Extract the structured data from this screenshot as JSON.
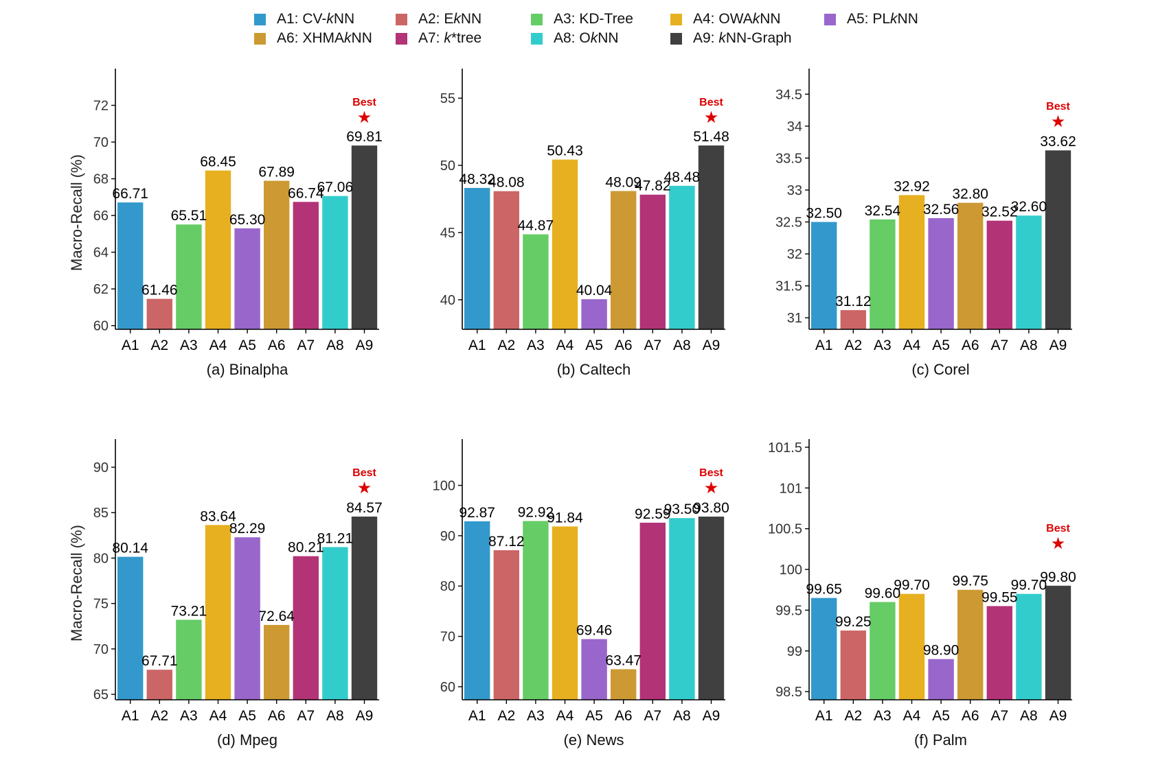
{
  "legend": [
    {
      "prefix": "A1: CV-",
      "ital": "k",
      "suffix": "NN",
      "color": "#3399CC"
    },
    {
      "prefix": "A2: E",
      "ital": "k",
      "suffix": "NN",
      "color": "#CC6666"
    },
    {
      "prefix": "A3: KD-Tree",
      "ital": "",
      "suffix": "",
      "color": "#66CC66"
    },
    {
      "prefix": "A4: OWA",
      "ital": "k",
      "suffix": "NN",
      "color": "#E6B020"
    },
    {
      "prefix": "A5: PL",
      "ital": "k",
      "suffix": "NN",
      "color": "#9966CC"
    },
    {
      "prefix": "A6: XHMA",
      "ital": "k",
      "suffix": "NN",
      "color": "#CC9933"
    },
    {
      "prefix": "A7: ",
      "ital": "k",
      "suffix": "*tree",
      "color": "#B33377"
    },
    {
      "prefix": "A8: O",
      "ital": "k",
      "suffix": "NN",
      "color": "#33CCCC"
    },
    {
      "prefix": "A9: ",
      "ital": "k",
      "suffix": "NN-Graph",
      "color": "#404040"
    }
  ],
  "best_label": "Best",
  "best_color": "#DD0000",
  "ylabel": "Macro-Recall (%)",
  "chart_data": [
    {
      "type": "bar",
      "title": "(a) Binalpha",
      "ylabel": "Macro-Recall (%)",
      "categories": [
        "A1",
        "A2",
        "A3",
        "A4",
        "A5",
        "A6",
        "A7",
        "A8",
        "A9"
      ],
      "values": [
        66.71,
        61.46,
        65.51,
        68.45,
        65.3,
        67.89,
        66.74,
        67.06,
        69.81
      ],
      "labels": [
        "66.71",
        "61.46",
        "65.51",
        "68.45",
        "65.30",
        "67.89",
        "66.74",
        "67.06",
        "69.81"
      ],
      "ylim": [
        59.8,
        74.0
      ],
      "yticks": [
        60,
        62,
        64,
        66,
        68,
        70,
        72
      ],
      "ytick_labels": [
        "60",
        "62",
        "64",
        "66",
        "68",
        "70",
        "72"
      ],
      "best_index": 8
    },
    {
      "type": "bar",
      "title": "(b) Caltech",
      "ylabel": "",
      "categories": [
        "A1",
        "A2",
        "A3",
        "A4",
        "A5",
        "A6",
        "A7",
        "A8",
        "A9"
      ],
      "values": [
        48.32,
        48.08,
        44.87,
        50.43,
        40.04,
        48.09,
        47.82,
        48.48,
        51.48
      ],
      "labels": [
        "48.32",
        "48.08",
        "44.87",
        "50.43",
        "40.04",
        "48.09",
        "47.82",
        "48.48",
        "51.48"
      ],
      "ylim": [
        37.8,
        57.2
      ],
      "yticks": [
        40,
        45,
        50,
        55
      ],
      "ytick_labels": [
        "40",
        "45",
        "50",
        "55"
      ],
      "best_index": 8
    },
    {
      "type": "bar",
      "title": "(c) Corel",
      "ylabel": "",
      "categories": [
        "A1",
        "A2",
        "A3",
        "A4",
        "A5",
        "A6",
        "A7",
        "A8",
        "A9"
      ],
      "values": [
        32.5,
        31.12,
        32.54,
        32.92,
        32.56,
        32.8,
        32.52,
        32.6,
        33.62
      ],
      "labels": [
        "32.50",
        "31.12",
        "32.54",
        "32.92",
        "32.56",
        "32.80",
        "32.52",
        "32.60",
        "33.62"
      ],
      "ylim": [
        30.82,
        34.9
      ],
      "yticks": [
        31,
        31.5,
        32,
        32.5,
        33,
        33.5,
        34,
        34.5
      ],
      "ytick_labels": [
        "31",
        "31.5",
        "32",
        "32.5",
        "33",
        "33.5",
        "34",
        "34.5"
      ],
      "best_index": 8
    },
    {
      "type": "bar",
      "title": "(d) Mpeg",
      "ylabel": "Macro-Recall (%)",
      "categories": [
        "A1",
        "A2",
        "A3",
        "A4",
        "A5",
        "A6",
        "A7",
        "A8",
        "A9"
      ],
      "values": [
        80.14,
        67.71,
        73.21,
        83.64,
        82.29,
        72.64,
        80.21,
        81.21,
        84.57
      ],
      "labels": [
        "80.14",
        "67.71",
        "73.21",
        "83.64",
        "82.29",
        "72.64",
        "80.21",
        "81.21",
        "84.57"
      ],
      "ylim": [
        64.4,
        93.1
      ],
      "yticks": [
        65,
        70,
        75,
        80,
        85,
        90
      ],
      "ytick_labels": [
        "65",
        "70",
        "75",
        "80",
        "85",
        "90"
      ],
      "best_index": 8
    },
    {
      "type": "bar",
      "title": "(e) News",
      "ylabel": "",
      "categories": [
        "A1",
        "A2",
        "A3",
        "A4",
        "A5",
        "A6",
        "A7",
        "A8",
        "A9"
      ],
      "values": [
        92.87,
        87.12,
        92.92,
        91.84,
        69.46,
        63.47,
        92.59,
        93.5,
        93.8
      ],
      "labels": [
        "92.87",
        "87.12",
        "92.92",
        "91.84",
        "69.46",
        "63.47",
        "92.59",
        "93.50",
        "93.80"
      ],
      "ylim": [
        57.4,
        109.2
      ],
      "yticks": [
        60,
        70,
        80,
        90,
        100
      ],
      "ytick_labels": [
        "60",
        "70",
        "80",
        "90",
        "100"
      ],
      "best_index": 8
    },
    {
      "type": "bar",
      "title": "(f) Palm",
      "ylabel": "",
      "categories": [
        "A1",
        "A2",
        "A3",
        "A4",
        "A5",
        "A6",
        "A7",
        "A8",
        "A9"
      ],
      "values": [
        99.65,
        99.25,
        99.6,
        99.7,
        98.9,
        99.75,
        99.55,
        99.7,
        99.8
      ],
      "labels": [
        "99.65",
        "99.25",
        "99.60",
        "99.70",
        "98.90",
        "99.75",
        "99.55",
        "99.70",
        "99.80"
      ],
      "ylim": [
        98.4,
        101.6
      ],
      "yticks": [
        98.5,
        99,
        99.5,
        100,
        100.5,
        101,
        101.5
      ],
      "ytick_labels": [
        "98.5",
        "99",
        "99.5",
        "100",
        "100.5",
        "101",
        "101.5"
      ],
      "best_index": 8
    }
  ]
}
